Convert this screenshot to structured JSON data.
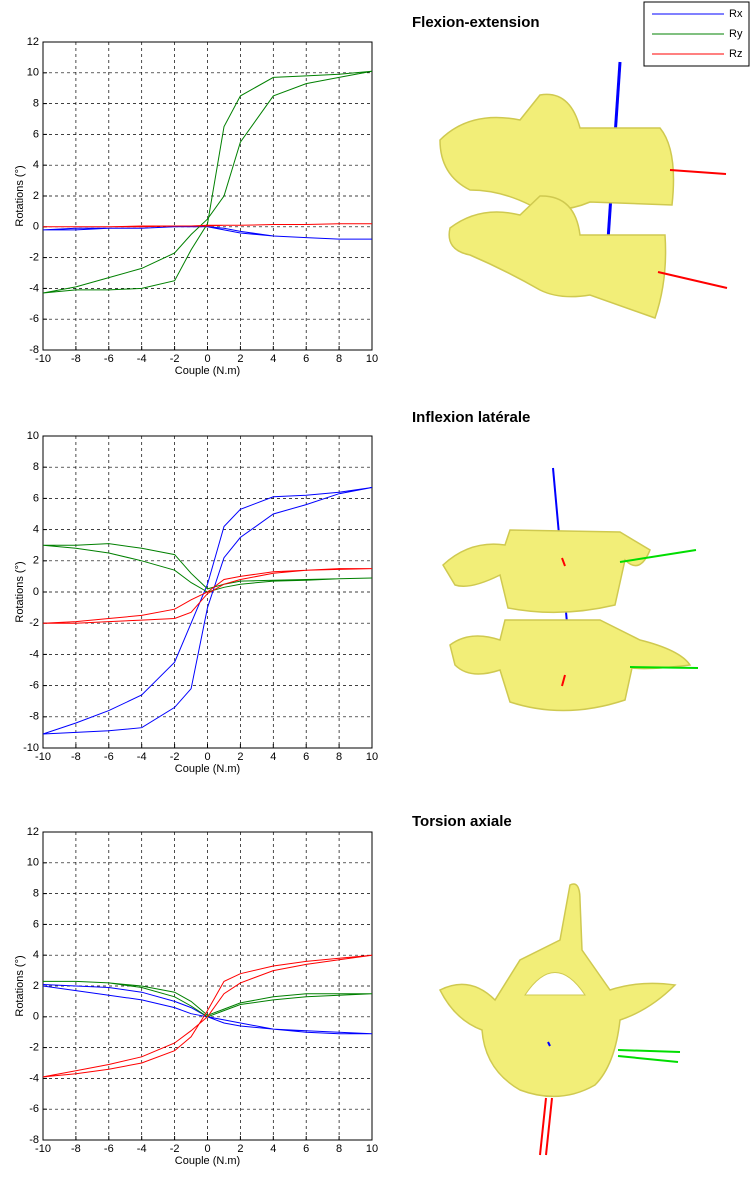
{
  "chart_data": [
    {
      "type": "line",
      "title": "Flexion-extension",
      "xlabel": "Couple (N.m)",
      "ylabel": "Rotations (°)",
      "x": [
        -10,
        -8,
        -6,
        -4,
        -2,
        -1,
        0,
        1,
        2,
        4,
        6,
        8,
        10,
        8,
        6,
        4,
        2,
        1,
        0,
        -1,
        -2,
        -4,
        -6,
        -8,
        -10
      ],
      "xlim": [
        -10,
        10
      ],
      "xticks": [
        -10,
        -8,
        -6,
        -4,
        -2,
        0,
        2,
        4,
        6,
        8,
        10
      ],
      "ylim": [
        -8,
        12
      ],
      "yticks": [
        -8,
        -6,
        -4,
        -2,
        0,
        2,
        4,
        6,
        8,
        10,
        12
      ],
      "grid": true,
      "legend": "upper right",
      "series": [
        {
          "name": "Rx",
          "color": "#0000ff",
          "values": [
            -0.2,
            -0.2,
            -0.1,
            -0.1,
            0,
            0,
            0,
            -0.2,
            -0.4,
            -0.6,
            -0.7,
            -0.8,
            -0.8,
            -0.8,
            -0.7,
            -0.6,
            -0.3,
            -0.1,
            0,
            0,
            0,
            -0.1,
            -0.1,
            -0.1,
            -0.2
          ]
        },
        {
          "name": "Ry",
          "color": "#008000",
          "values": [
            -4.3,
            -4.1,
            -4.1,
            -4.0,
            -3.5,
            -1.5,
            0.2,
            6.5,
            8.5,
            9.7,
            9.8,
            9.9,
            10.1,
            9.7,
            9.3,
            8.5,
            5.5,
            2.0,
            0.5,
            -0.5,
            -1.7,
            -2.7,
            -3.3,
            -3.9,
            -4.3
          ]
        },
        {
          "name": "Rz",
          "color": "#ff0000",
          "values": [
            0,
            0,
            0,
            0.05,
            0.05,
            0.05,
            0.1,
            0.1,
            0.1,
            0.15,
            0.15,
            0.2,
            0.2,
            0.2,
            0.15,
            0.15,
            0.1,
            0.1,
            0.05,
            0.05,
            0.05,
            0,
            0,
            0,
            0
          ]
        }
      ]
    },
    {
      "type": "line",
      "title": "Inflexion latérale",
      "xlabel": "Couple (N.m)",
      "ylabel": "Rotations (°)",
      "x": [
        -10,
        -8,
        -6,
        -4,
        -2,
        -1,
        0,
        1,
        2,
        4,
        6,
        8,
        10,
        8,
        6,
        4,
        2,
        1,
        0,
        -1,
        -2,
        -4,
        -6,
        -8,
        -10
      ],
      "xlim": [
        -10,
        10
      ],
      "xticks": [
        -10,
        -8,
        -6,
        -4,
        -2,
        0,
        2,
        4,
        6,
        8,
        10
      ],
      "ylim": [
        -10,
        10
      ],
      "yticks": [
        -10,
        -8,
        -6,
        -4,
        -2,
        0,
        2,
        4,
        6,
        8,
        10
      ],
      "grid": true,
      "series": [
        {
          "name": "Rx",
          "color": "#0000ff",
          "values": [
            -9.1,
            -8.4,
            -7.6,
            -6.6,
            -4.5,
            -2.0,
            0.5,
            4.2,
            5.3,
            6.1,
            6.2,
            6.4,
            6.7,
            6.3,
            5.6,
            5.0,
            3.5,
            2.2,
            -1.0,
            -6.2,
            -7.4,
            -8.7,
            -8.9,
            -9.0,
            -9.1
          ]
        },
        {
          "name": "Ry",
          "color": "#008000",
          "values": [
            3.0,
            3.0,
            3.1,
            2.8,
            2.4,
            1.2,
            0.2,
            0.5,
            0.7,
            0.75,
            0.8,
            0.85,
            0.9,
            0.85,
            0.75,
            0.7,
            0.5,
            0.3,
            0,
            0.6,
            1.4,
            2.0,
            2.5,
            2.8,
            3.0
          ]
        },
        {
          "name": "Rz",
          "color": "#ff0000",
          "values": [
            -2.0,
            -1.9,
            -1.7,
            -1.5,
            -1.1,
            -0.5,
            0,
            0.8,
            1.0,
            1.3,
            1.4,
            1.5,
            1.5,
            1.45,
            1.4,
            1.2,
            0.8,
            0.5,
            -0.1,
            -1.3,
            -1.7,
            -1.8,
            -1.9,
            -2.0,
            -2.0
          ]
        }
      ]
    },
    {
      "type": "line",
      "title": "Torsion axiale",
      "xlabel": "Couple (N.m)",
      "ylabel": "Rotations (°)",
      "x": [
        -10,
        -8,
        -6,
        -4,
        -2,
        -1,
        0,
        1,
        2,
        4,
        6,
        8,
        10,
        8,
        6,
        4,
        2,
        1,
        0,
        -1,
        -2,
        -4,
        -6,
        -8,
        -10
      ],
      "xlim": [
        -10,
        10
      ],
      "xticks": [
        -10,
        -8,
        -6,
        -4,
        -2,
        0,
        2,
        4,
        6,
        8,
        10
      ],
      "ylim": [
        -8,
        12
      ],
      "yticks": [
        -8,
        -6,
        -4,
        -2,
        0,
        2,
        4,
        6,
        8,
        10,
        12
      ],
      "grid": true,
      "series": [
        {
          "name": "Rx",
          "color": "#0000ff",
          "values": [
            2.0,
            1.7,
            1.4,
            1.1,
            0.6,
            0.2,
            0,
            -0.4,
            -0.6,
            -0.8,
            -0.9,
            -1.0,
            -1.1,
            -1.1,
            -1.0,
            -0.8,
            -0.4,
            -0.2,
            0,
            0.6,
            1.0,
            1.6,
            1.9,
            2.0,
            2.1
          ]
        },
        {
          "name": "Ry",
          "color": "#008000",
          "values": [
            2.3,
            2.3,
            2.2,
            1.9,
            1.3,
            0.7,
            0,
            0.4,
            0.8,
            1.1,
            1.3,
            1.4,
            1.5,
            1.5,
            1.5,
            1.3,
            0.9,
            0.5,
            0.1,
            1.0,
            1.6,
            2.0,
            2.2,
            2.3,
            2.3
          ]
        },
        {
          "name": "Rz",
          "color": "#ff0000",
          "values": [
            -3.9,
            -3.5,
            -3.1,
            -2.6,
            -1.7,
            -0.9,
            0,
            1.5,
            2.2,
            3.0,
            3.4,
            3.7,
            4.0,
            3.8,
            3.6,
            3.3,
            2.8,
            2.3,
            0.4,
            -1.3,
            -2.2,
            -3.0,
            -3.4,
            -3.7,
            -3.9
          ]
        }
      ]
    }
  ]
}
